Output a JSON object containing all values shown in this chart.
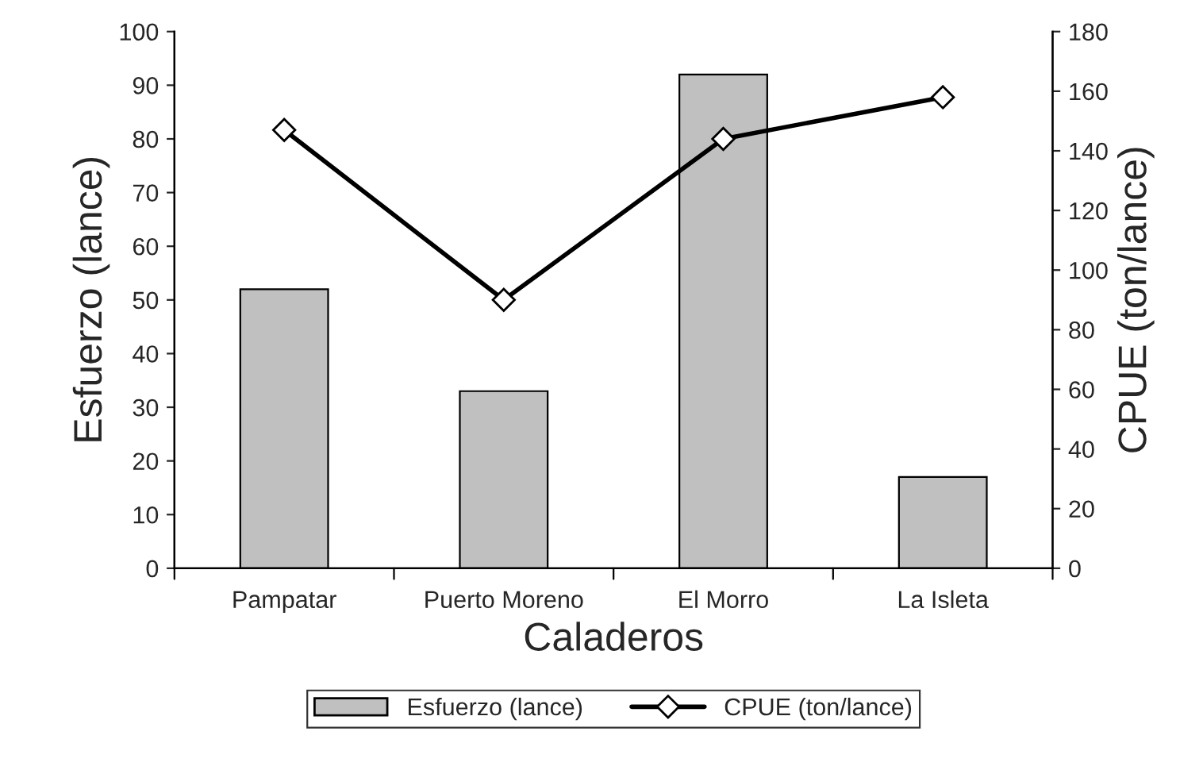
{
  "chart_data": {
    "type": "bar",
    "xlabel": "Caladeros",
    "ylabel": "Esfuerzo (lance)",
    "y2label": "CPUE (ton/lance)",
    "categories": [
      "Pampatar",
      "Puerto Moreno",
      "El Morro",
      "La Isleta"
    ],
    "series": [
      {
        "name": "Esfuerzo (lance)",
        "color": "#c0c0c0",
        "values": [
          52,
          33,
          92,
          17
        ]
      },
      {
        "name": "CPUE (ton/lance)",
        "type": "line",
        "axis": "y2",
        "color": "#000000",
        "marker": "diamond",
        "line_style": "solid",
        "values": [
          147,
          90,
          144,
          158
        ]
      }
    ],
    "ylim": [
      0,
      100
    ],
    "yticks": [
      0,
      10,
      20,
      30,
      40,
      50,
      60,
      70,
      80,
      90,
      100
    ],
    "y2lim": [
      0,
      180
    ],
    "y2ticks": [
      0,
      20,
      40,
      60,
      80,
      100,
      120,
      140,
      160,
      180
    ],
    "grid": false,
    "legend": "bottom"
  }
}
